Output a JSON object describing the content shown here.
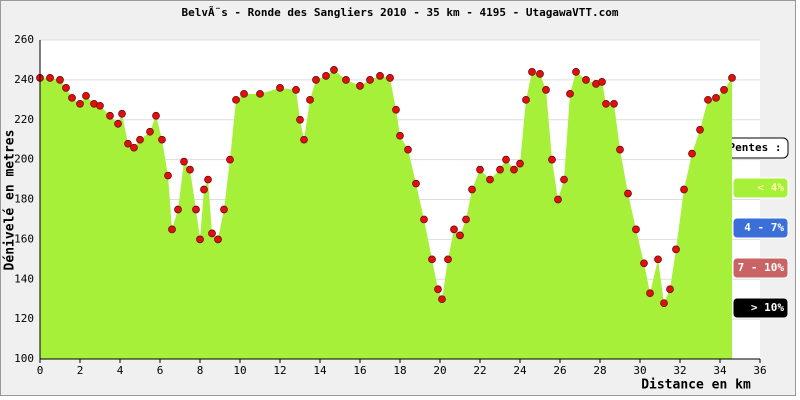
{
  "chart_data": {
    "type": "area",
    "title": "BelvÃ¨s - Ronde des Sangliers 2010 - 35 km - 4195 - UtagawaVTT.com",
    "x_label": "Distance en km",
    "y_label": "Dénivelé en metres",
    "x": [
      0,
      0.5,
      1,
      1.3,
      1.6,
      2,
      2.3,
      2.7,
      3,
      3.5,
      3.9,
      4.1,
      4.4,
      4.7,
      5,
      5.5,
      5.8,
      6.1,
      6.4,
      6.6,
      6.9,
      7.2,
      7.5,
      7.8,
      8,
      8.2,
      8.4,
      8.6,
      8.9,
      9.2,
      9.5,
      9.8,
      10.2,
      11,
      12,
      12.8,
      13,
      13.2,
      13.5,
      13.8,
      14.3,
      14.7,
      15.3,
      16,
      16.5,
      17,
      17.5,
      17.8,
      18,
      18.4,
      18.8,
      19.2,
      19.6,
      19.9,
      20.1,
      20.4,
      20.7,
      21,
      21.3,
      21.6,
      22,
      22.5,
      23,
      23.3,
      23.7,
      24,
      24.3,
      24.6,
      25,
      25.3,
      25.6,
      25.9,
      26.2,
      26.5,
      26.8,
      27.3,
      27.8,
      28.1,
      28.3,
      28.7,
      29,
      29.4,
      29.8,
      30.2,
      30.5,
      30.9,
      31.2,
      31.5,
      31.8,
      32.2,
      32.6,
      33,
      33.4,
      33.8,
      34.2,
      34.6
    ],
    "series": [
      {
        "name": "Altitude",
        "color": "#a6f03a",
        "marker_color": "#e01010",
        "values": [
          241,
          241,
          240,
          236,
          231,
          228,
          232,
          228,
          227,
          222,
          218,
          223,
          208,
          206,
          210,
          214,
          222,
          210,
          192,
          165,
          175,
          199,
          195,
          175,
          160,
          185,
          190,
          163,
          160,
          175,
          200,
          230,
          233,
          233,
          236,
          235,
          220,
          210,
          230,
          240,
          242,
          245,
          240,
          237,
          240,
          242,
          241,
          225,
          212,
          205,
          188,
          170,
          150,
          135,
          130,
          150,
          165,
          162,
          170,
          185,
          195,
          190,
          195,
          200,
          195,
          198,
          230,
          244,
          243,
          235,
          200,
          180,
          190,
          233,
          244,
          240,
          238,
          239,
          228,
          228,
          205,
          183,
          165,
          148,
          133,
          150,
          128,
          135,
          155,
          185,
          203,
          215,
          230,
          231,
          235,
          241
        ]
      }
    ],
    "xlim": [
      0,
      36
    ],
    "xticks": [
      0,
      2,
      4,
      6,
      8,
      10,
      12,
      14,
      16,
      18,
      20,
      22,
      24,
      26,
      28,
      30,
      32,
      34,
      36
    ],
    "ylim": [
      100,
      260
    ],
    "yticks": [
      100,
      120,
      140,
      160,
      180,
      200,
      220,
      240,
      260
    ],
    "grid": true,
    "legend_title": "Pentes :",
    "legend": [
      {
        "label": "< 4%",
        "color": "#a6f03a"
      },
      {
        "label": "4 - 7%",
        "color": "#3a6fd8"
      },
      {
        "label": "7 - 10%",
        "color": "#c86464"
      },
      {
        "label": "> 10%",
        "color": "#000000"
      }
    ]
  }
}
